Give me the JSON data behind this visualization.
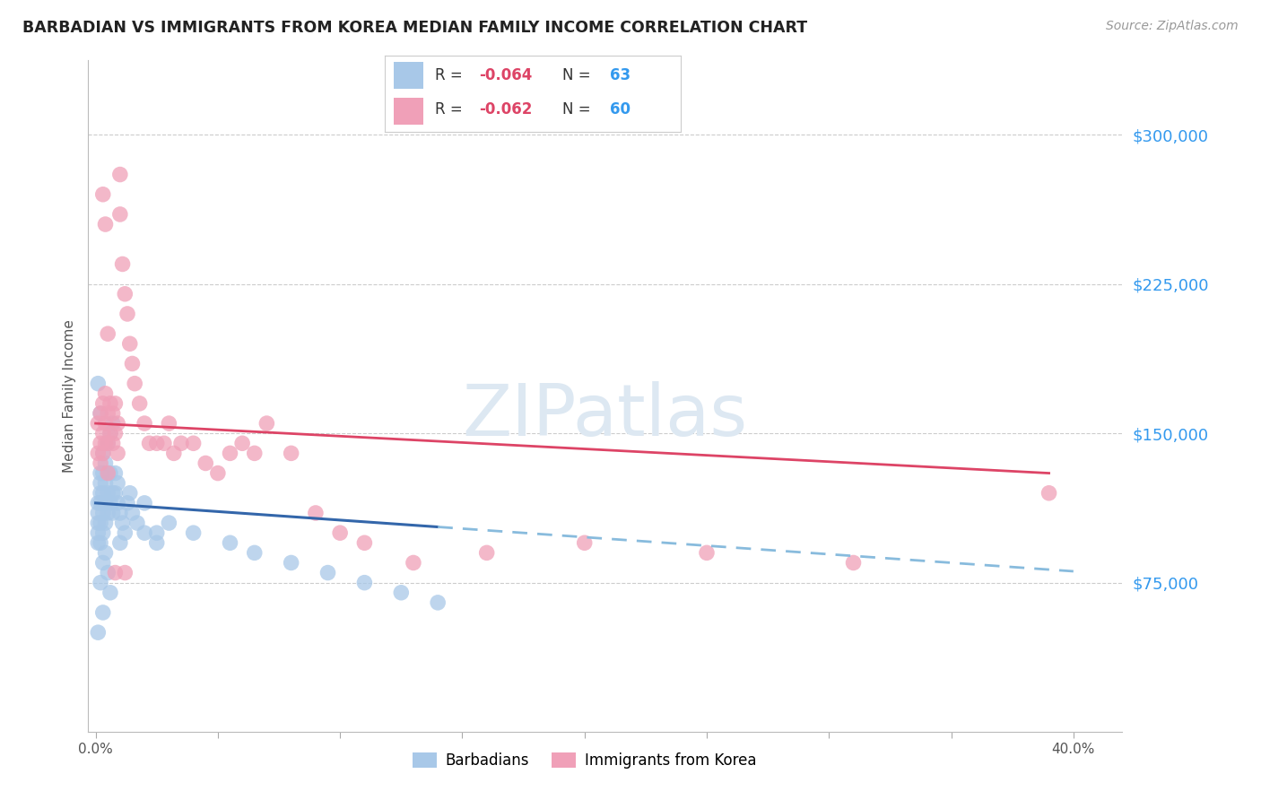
{
  "title": "BARBADIAN VS IMMIGRANTS FROM KOREA MEDIAN FAMILY INCOME CORRELATION CHART",
  "source": "Source: ZipAtlas.com",
  "ylabel": "Median Family Income",
  "ytick_labels": [
    "$75,000",
    "$150,000",
    "$225,000",
    "$300,000"
  ],
  "ytick_values": [
    75000,
    150000,
    225000,
    300000
  ],
  "ymin": 0,
  "ymax": 337500,
  "xmin": -0.003,
  "xmax": 0.42,
  "watermark": "ZIPatlas",
  "background_color": "#ffffff",
  "scatter_blue_color": "#a8c8e8",
  "scatter_pink_color": "#f0a0b8",
  "line_blue_solid_color": "#3366aa",
  "line_pink_solid_color": "#dd4466",
  "line_blue_dashed_color": "#88bbdd",
  "grid_color": "#cccccc",
  "ytick_label_color": "#3399ee",
  "title_color": "#222222",
  "barbadians_x": [
    0.001,
    0.001,
    0.001,
    0.001,
    0.001,
    0.002,
    0.002,
    0.002,
    0.002,
    0.002,
    0.002,
    0.003,
    0.003,
    0.003,
    0.003,
    0.003,
    0.004,
    0.004,
    0.004,
    0.004,
    0.005,
    0.005,
    0.005,
    0.006,
    0.006,
    0.006,
    0.007,
    0.007,
    0.007,
    0.008,
    0.008,
    0.009,
    0.009,
    0.01,
    0.011,
    0.012,
    0.013,
    0.014,
    0.015,
    0.017,
    0.02,
    0.025,
    0.03,
    0.04,
    0.055,
    0.065,
    0.08,
    0.095,
    0.11,
    0.125,
    0.14,
    0.02,
    0.025,
    0.01,
    0.003,
    0.004,
    0.005,
    0.002,
    0.006,
    0.003,
    0.001,
    0.002,
    0.001
  ],
  "barbadians_y": [
    110000,
    95000,
    105000,
    115000,
    100000,
    120000,
    130000,
    105000,
    95000,
    115000,
    125000,
    140000,
    110000,
    100000,
    120000,
    130000,
    115000,
    125000,
    105000,
    135000,
    145000,
    120000,
    110000,
    150000,
    130000,
    115000,
    155000,
    120000,
    110000,
    130000,
    120000,
    125000,
    115000,
    110000,
    105000,
    100000,
    115000,
    120000,
    110000,
    105000,
    100000,
    95000,
    105000,
    100000,
    95000,
    90000,
    85000,
    80000,
    75000,
    70000,
    65000,
    115000,
    100000,
    95000,
    85000,
    90000,
    80000,
    75000,
    70000,
    60000,
    175000,
    160000,
    50000
  ],
  "korea_x": [
    0.001,
    0.001,
    0.002,
    0.002,
    0.002,
    0.003,
    0.003,
    0.003,
    0.004,
    0.004,
    0.004,
    0.005,
    0.005,
    0.005,
    0.006,
    0.006,
    0.007,
    0.007,
    0.008,
    0.008,
    0.009,
    0.009,
    0.01,
    0.01,
    0.011,
    0.012,
    0.013,
    0.014,
    0.015,
    0.016,
    0.018,
    0.02,
    0.022,
    0.025,
    0.028,
    0.03,
    0.032,
    0.035,
    0.04,
    0.045,
    0.05,
    0.055,
    0.06,
    0.065,
    0.07,
    0.08,
    0.09,
    0.1,
    0.11,
    0.13,
    0.16,
    0.2,
    0.25,
    0.31,
    0.39,
    0.003,
    0.004,
    0.005,
    0.008,
    0.012
  ],
  "korea_y": [
    155000,
    140000,
    160000,
    145000,
    135000,
    165000,
    150000,
    140000,
    155000,
    170000,
    145000,
    160000,
    145000,
    130000,
    165000,
    150000,
    160000,
    145000,
    165000,
    150000,
    155000,
    140000,
    280000,
    260000,
    235000,
    220000,
    210000,
    195000,
    185000,
    175000,
    165000,
    155000,
    145000,
    145000,
    145000,
    155000,
    140000,
    145000,
    145000,
    135000,
    130000,
    140000,
    145000,
    140000,
    155000,
    140000,
    110000,
    100000,
    95000,
    85000,
    90000,
    95000,
    90000,
    85000,
    120000,
    270000,
    255000,
    200000,
    80000,
    80000
  ]
}
